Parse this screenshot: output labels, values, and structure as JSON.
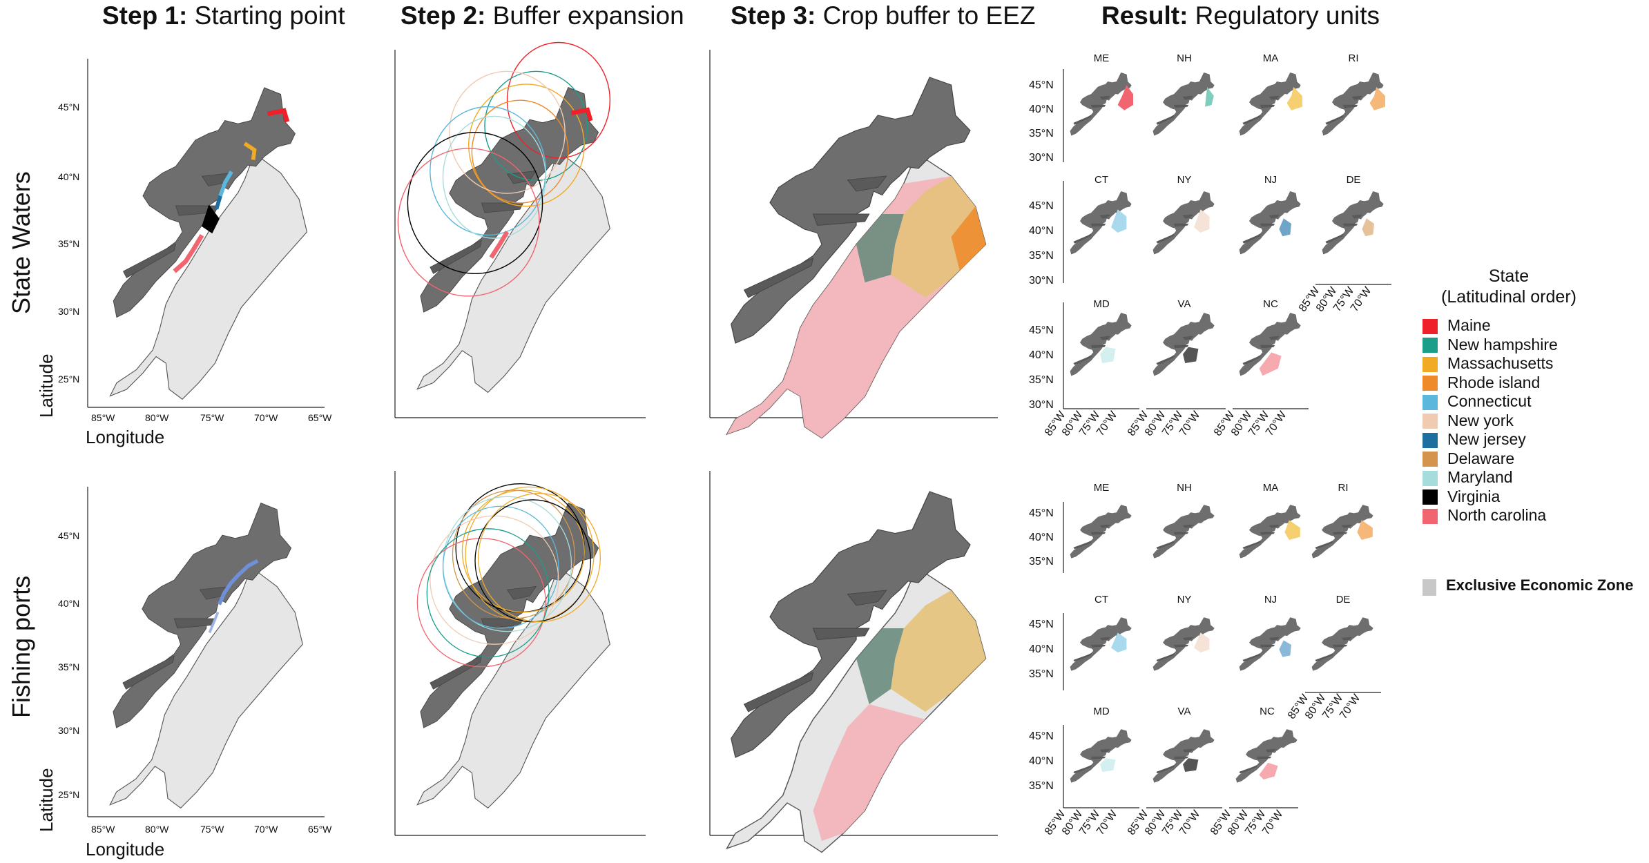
{
  "columns": [
    {
      "bold": "Step 1:",
      "rest": " Starting point"
    },
    {
      "bold": "Step 2:",
      "rest": " Buffer expansion"
    },
    {
      "bold": "Step 3:",
      "rest": " Crop buffer to EEZ"
    },
    {
      "bold": "Result:",
      "rest": " Regulatory units"
    }
  ],
  "rows": [
    "State Waters",
    "Fishing ports"
  ],
  "axes": {
    "xlabel": "Longitude",
    "ylabel": "Latitude",
    "lat_ticks_full": [
      "45°N",
      "40°N",
      "35°N",
      "30°N",
      "25°N"
    ],
    "lon_ticks_full": [
      "85°W",
      "80°W",
      "75°W",
      "70°W",
      "65°W"
    ],
    "small_lat_ticks_top": [
      "45°N",
      "40°N",
      "35°N",
      "30°N"
    ],
    "small_lat_ticks_bottom": [
      "45°N",
      "40°N",
      "35°N"
    ],
    "small_lon_ticks": [
      "85°W",
      "80°W",
      "75°W",
      "70°W"
    ]
  },
  "state_codes": [
    "ME",
    "NH",
    "MA",
    "RI",
    "CT",
    "NY",
    "NJ",
    "DE",
    "MD",
    "VA",
    "NC"
  ],
  "legend": {
    "title_line1": "State",
    "title_line2": "(Latitudinal order)",
    "items": [
      {
        "label": "Maine",
        "color": "#f0202a"
      },
      {
        "label": "New hampshire",
        "color": "#1a9e8a"
      },
      {
        "label": "Massachusetts",
        "color": "#f0aa24"
      },
      {
        "label": "Rhode island",
        "color": "#ee8a2a"
      },
      {
        "label": "Connecticut",
        "color": "#5bb8dc"
      },
      {
        "label": "New york",
        "color": "#f0cbb2"
      },
      {
        "label": "New jersey",
        "color": "#1e6ea0"
      },
      {
        "label": "Delaware",
        "color": "#d4944e"
      },
      {
        "label": "Maryland",
        "color": "#a6dcdc"
      },
      {
        "label": "Virginia",
        "color": "#000000"
      },
      {
        "label": "North carolina",
        "color": "#f06570"
      }
    ],
    "eez_label": "Exclusive Economic Zone",
    "eez_color": "#c8c8c8"
  },
  "colors": {
    "land": "#6e6e6e",
    "eez": "#e6e6e6"
  }
}
